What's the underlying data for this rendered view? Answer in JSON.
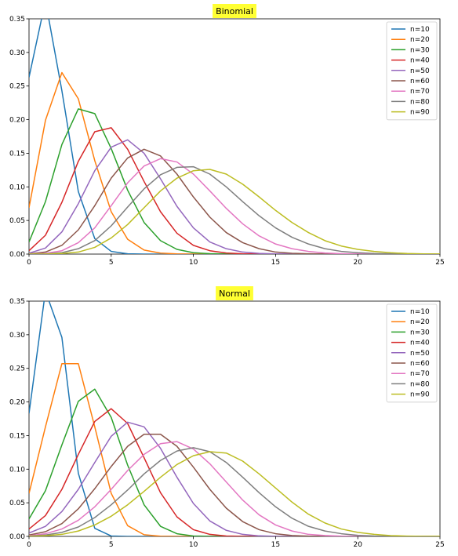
{
  "chart_data": [
    {
      "type": "line",
      "title": "Binomial",
      "xlabel": "",
      "ylabel": "",
      "xlim": [
        0,
        25
      ],
      "ylim": [
        0,
        0.35
      ],
      "xticks": [
        "0",
        "5",
        "10",
        "15",
        "20",
        "25"
      ],
      "yticks": [
        "0.00",
        "0.05",
        "0.10",
        "0.15",
        "0.20",
        "0.25",
        "0.30",
        "0.35"
      ],
      "grid": false,
      "legend_position": "upper-right",
      "title_highlight": "#ffff33",
      "x": [
        0,
        1,
        2,
        3,
        4,
        5,
        6,
        7,
        8,
        9,
        10,
        11,
        12,
        13,
        14,
        15,
        16,
        17,
        18,
        19,
        20,
        21,
        22,
        23,
        24,
        25
      ],
      "series": [
        {
          "name": "n=10",
          "color": "#1f77b4",
          "values": [
            0.263,
            0.377,
            0.243,
            0.093,
            0.023,
            0.004,
            0.0004,
            0,
            0,
            0,
            0,
            0,
            0,
            0,
            0,
            0,
            0,
            0,
            0,
            0,
            0,
            0,
            0,
            0,
            0,
            0
          ]
        },
        {
          "name": "n=20",
          "color": "#ff7f0e",
          "values": [
            0.069,
            0.199,
            0.27,
            0.231,
            0.139,
            0.063,
            0.022,
            0.006,
            0.0015,
            0.0003,
            0,
            0,
            0,
            0,
            0,
            0,
            0,
            0,
            0,
            0,
            0,
            0,
            0,
            0,
            0,
            0
          ]
        },
        {
          "name": "n=30",
          "color": "#2ca02c",
          "values": [
            0.018,
            0.078,
            0.163,
            0.216,
            0.209,
            0.157,
            0.095,
            0.047,
            0.02,
            0.007,
            0.002,
            0.0006,
            0.0001,
            0,
            0,
            0,
            0,
            0,
            0,
            0,
            0,
            0,
            0,
            0,
            0,
            0
          ]
        },
        {
          "name": "n=40",
          "color": "#d62728",
          "values": [
            0.005,
            0.028,
            0.077,
            0.138,
            0.182,
            0.188,
            0.156,
            0.108,
            0.063,
            0.031,
            0.013,
            0.005,
            0.0016,
            0.0004,
            0.0001,
            0,
            0,
            0,
            0,
            0,
            0,
            0,
            0,
            0,
            0,
            0
          ]
        },
        {
          "name": "n=50",
          "color": "#9467bd",
          "values": [
            0.0013,
            0.009,
            0.033,
            0.075,
            0.124,
            0.159,
            0.17,
            0.15,
            0.112,
            0.071,
            0.039,
            0.018,
            0.008,
            0.003,
            0.001,
            0.0003,
            0.0001,
            0,
            0,
            0,
            0,
            0,
            0,
            0,
            0,
            0
          ]
        },
        {
          "name": "n=60",
          "color": "#8c564b",
          "values": [
            0.0003,
            0.003,
            0.013,
            0.036,
            0.072,
            0.113,
            0.143,
            0.156,
            0.146,
            0.119,
            0.085,
            0.055,
            0.032,
            0.017,
            0.008,
            0.003,
            0.0012,
            0.0004,
            0.0001,
            0,
            0,
            0,
            0,
            0,
            0,
            0
          ]
        },
        {
          "name": "n=70",
          "color": "#e377c2",
          "values": [
            0.0001,
            0.001,
            0.005,
            0.017,
            0.039,
            0.072,
            0.106,
            0.131,
            0.142,
            0.137,
            0.119,
            0.094,
            0.068,
            0.045,
            0.027,
            0.015,
            0.008,
            0.004,
            0.0016,
            0.0006,
            0.0002,
            0,
            0,
            0,
            0,
            0
          ]
        },
        {
          "name": "n=80",
          "color": "#7f7f7f",
          "values": [
            0,
            0.0003,
            0.002,
            0.008,
            0.02,
            0.042,
            0.07,
            0.097,
            0.118,
            0.129,
            0.13,
            0.119,
            0.1,
            0.078,
            0.057,
            0.039,
            0.025,
            0.015,
            0.008,
            0.004,
            0.002,
            0.0009,
            0.0004,
            0.0001,
            0,
            0
          ]
        },
        {
          "name": "n=90",
          "color": "#bcbd22",
          "values": [
            0,
            0.0001,
            0.0008,
            0.003,
            0.01,
            0.024,
            0.044,
            0.069,
            0.094,
            0.113,
            0.124,
            0.126,
            0.119,
            0.104,
            0.085,
            0.065,
            0.047,
            0.032,
            0.02,
            0.012,
            0.007,
            0.004,
            0.002,
            0.0008,
            0.0003,
            0.0001
          ]
        }
      ]
    },
    {
      "type": "line",
      "title": "Normal",
      "xlabel": "",
      "ylabel": "",
      "xlim": [
        0,
        25
      ],
      "ylim": [
        0,
        0.35
      ],
      "xticks": [
        "0",
        "5",
        "10",
        "15",
        "20",
        "25"
      ],
      "yticks": [
        "0.00",
        "0.05",
        "0.10",
        "0.15",
        "0.20",
        "0.25",
        "0.30",
        "0.35"
      ],
      "grid": false,
      "legend_position": "upper-right",
      "title_highlight": "#ffff33",
      "x": [
        0,
        1,
        2,
        3,
        4,
        5,
        6,
        7,
        8,
        9,
        10,
        11,
        12,
        13,
        14,
        15,
        16,
        17,
        18,
        19,
        20,
        21,
        22,
        23,
        24,
        25
      ],
      "series": [
        {
          "name": "n=10",
          "color": "#1f77b4",
          "values": [
            0.183,
            0.365,
            0.296,
            0.094,
            0.012,
            0.0006,
            0,
            0,
            0,
            0,
            0,
            0,
            0,
            0,
            0,
            0,
            0,
            0,
            0,
            0,
            0,
            0,
            0,
            0,
            0,
            0
          ]
        },
        {
          "name": "n=20",
          "color": "#ff7f0e",
          "values": [
            0.064,
            0.163,
            0.257,
            0.257,
            0.163,
            0.064,
            0.016,
            0.0025,
            0.0003,
            0,
            0,
            0,
            0,
            0,
            0,
            0,
            0,
            0,
            0,
            0,
            0,
            0,
            0,
            0,
            0,
            0
          ]
        },
        {
          "name": "n=30",
          "color": "#2ca02c",
          "values": [
            0.026,
            0.068,
            0.136,
            0.201,
            0.219,
            0.177,
            0.106,
            0.047,
            0.015,
            0.004,
            0.0006,
            0.0001,
            0,
            0,
            0,
            0,
            0,
            0,
            0,
            0,
            0,
            0,
            0,
            0,
            0,
            0
          ]
        },
        {
          "name": "n=40",
          "color": "#d62728",
          "values": [
            0.011,
            0.031,
            0.07,
            0.122,
            0.171,
            0.19,
            0.168,
            0.117,
            0.065,
            0.029,
            0.01,
            0.003,
            0.0006,
            0.0001,
            0,
            0,
            0,
            0,
            0,
            0,
            0,
            0,
            0,
            0,
            0,
            0
          ]
        },
        {
          "name": "n=50",
          "color": "#9467bd",
          "values": [
            0.005,
            0.015,
            0.037,
            0.07,
            0.11,
            0.149,
            0.17,
            0.163,
            0.131,
            0.088,
            0.049,
            0.023,
            0.009,
            0.003,
            0.0008,
            0.0002,
            0,
            0,
            0,
            0,
            0,
            0,
            0,
            0,
            0,
            0
          ]
        },
        {
          "name": "n=60",
          "color": "#8c564b",
          "values": [
            0.002,
            0.007,
            0.019,
            0.041,
            0.071,
            0.104,
            0.134,
            0.152,
            0.152,
            0.134,
            0.103,
            0.07,
            0.042,
            0.022,
            0.01,
            0.004,
            0.0013,
            0.0004,
            0.0001,
            0,
            0,
            0,
            0,
            0,
            0,
            0
          ]
        },
        {
          "name": "n=70",
          "color": "#e377c2",
          "values": [
            0.001,
            0.004,
            0.011,
            0.024,
            0.044,
            0.07,
            0.098,
            0.122,
            0.138,
            0.141,
            0.13,
            0.108,
            0.081,
            0.054,
            0.032,
            0.017,
            0.008,
            0.003,
            0.0013,
            0.0004,
            0.0001,
            0,
            0,
            0,
            0,
            0
          ]
        },
        {
          "name": "n=80",
          "color": "#7f7f7f",
          "values": [
            0.0005,
            0.002,
            0.006,
            0.014,
            0.028,
            0.047,
            0.069,
            0.093,
            0.113,
            0.127,
            0.132,
            0.126,
            0.11,
            0.088,
            0.065,
            0.044,
            0.027,
            0.015,
            0.008,
            0.004,
            0.0016,
            0.0006,
            0.0002,
            0,
            0,
            0
          ]
        },
        {
          "name": "n=90",
          "color": "#bcbd22",
          "values": [
            0.0002,
            0.001,
            0.003,
            0.008,
            0.017,
            0.03,
            0.047,
            0.067,
            0.088,
            0.107,
            0.12,
            0.126,
            0.124,
            0.112,
            0.093,
            0.072,
            0.051,
            0.033,
            0.02,
            0.011,
            0.006,
            0.003,
            0.0012,
            0.0005,
            0.0002,
            0.0001
          ]
        }
      ]
    }
  ]
}
